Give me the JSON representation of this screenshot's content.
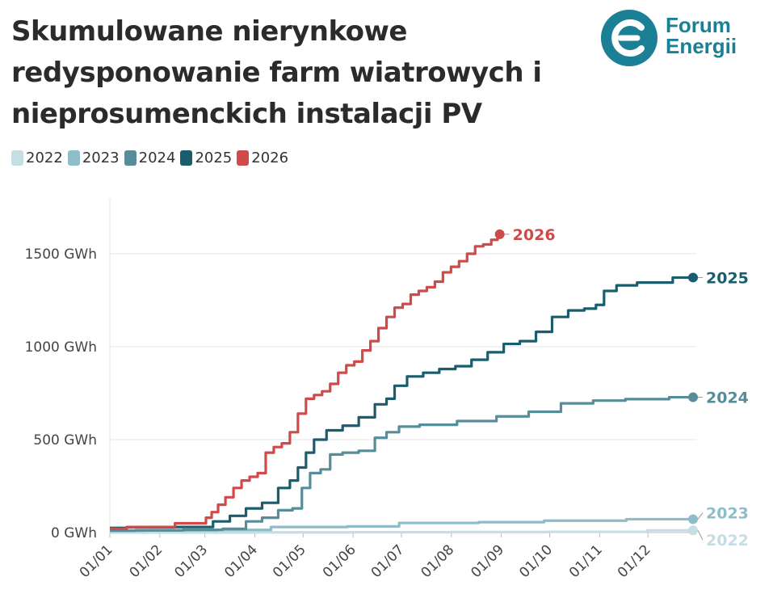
{
  "header": {
    "title_lines": [
      "Skumulowane nierynkowe",
      "redysponowanie farm wiatrowych i",
      "nieprosumenckich instalacji PV"
    ]
  },
  "logo": {
    "line1": "Forum",
    "line2": "Energii",
    "color": "#1b7f95"
  },
  "chart_data": {
    "type": "line",
    "title": "Skumulowane nierynkowe redysponowanie farm wiatrowych i nieprosumenckich instalacji PV",
    "ylim": [
      0,
      1800
    ],
    "y_ticks": [
      0,
      500,
      1000,
      1500
    ],
    "y_tick_labels": [
      "0 GWh",
      "500 GWh",
      "1000 GWh",
      "1500 GWh"
    ],
    "x_ticks": [
      "01/01",
      "01/02",
      "01/03",
      "01/04",
      "01/05",
      "01/06",
      "01/07",
      "01/08",
      "01/09",
      "01/10",
      "01/11",
      "01/12"
    ],
    "x_unit": "day-of-year",
    "grid": true,
    "legend_position": "top-left",
    "series": [
      {
        "name": "2022",
        "color": "#c5dde4",
        "x": [
          1,
          60,
          120,
          180,
          240,
          300,
          363
        ],
        "y": [
          0,
          0,
          1,
          2,
          3,
          4,
          12
        ]
      },
      {
        "name": "2023",
        "color": "#8ebdc9",
        "x": [
          1,
          40,
          90,
          110,
          180,
          181,
          270,
          271,
          363
        ],
        "y": [
          10,
          12,
          14,
          30,
          33,
          52,
          56,
          64,
          72
        ]
      },
      {
        "name": "2024",
        "color": "#578d9b",
        "x": [
          1,
          30,
          60,
          80,
          90,
          100,
          110,
          118,
          122,
          128,
          135,
          140,
          150,
          160,
          170,
          175,
          185,
          200,
          230,
          250,
          270,
          290,
          310,
          330,
          363
        ],
        "y": [
          10,
          12,
          15,
          20,
          60,
          80,
          120,
          130,
          240,
          320,
          340,
          420,
          430,
          440,
          510,
          540,
          570,
          580,
          600,
          625,
          650,
          695,
          710,
          718,
          728
        ]
      },
      {
        "name": "2025",
        "color": "#1a5d6d",
        "x": [
          1,
          20,
          59,
          70,
          80,
          90,
          100,
          110,
          115,
          120,
          125,
          130,
          140,
          150,
          160,
          170,
          175,
          180,
          190,
          200,
          210,
          220,
          230,
          240,
          250,
          260,
          270,
          280,
          290,
          300,
          305,
          310,
          320,
          335,
          363
        ],
        "y": [
          25,
          28,
          30,
          60,
          90,
          130,
          160,
          240,
          280,
          350,
          430,
          500,
          550,
          575,
          620,
          690,
          720,
          790,
          840,
          860,
          880,
          895,
          930,
          970,
          1015,
          1030,
          1080,
          1160,
          1195,
          1205,
          1225,
          1300,
          1330,
          1345,
          1372
        ]
      },
      {
        "name": "2026",
        "color": "#d14a4a",
        "x": [
          1,
          20,
          59,
          62,
          66,
          70,
          75,
          80,
          85,
          90,
          95,
          100,
          105,
          110,
          115,
          120,
          125,
          130,
          135,
          140,
          145,
          150,
          155,
          160,
          165,
          170,
          175,
          180,
          185,
          190,
          195,
          200,
          205,
          210,
          215,
          220,
          225,
          230,
          235,
          240,
          243
        ],
        "y": [
          20,
          30,
          50,
          80,
          110,
          150,
          190,
          240,
          280,
          300,
          320,
          430,
          460,
          480,
          540,
          640,
          720,
          740,
          760,
          800,
          860,
          900,
          920,
          980,
          1030,
          1100,
          1160,
          1210,
          1230,
          1280,
          1300,
          1320,
          1350,
          1400,
          1430,
          1460,
          1500,
          1540,
          1550,
          1575,
          1605
        ]
      }
    ]
  }
}
